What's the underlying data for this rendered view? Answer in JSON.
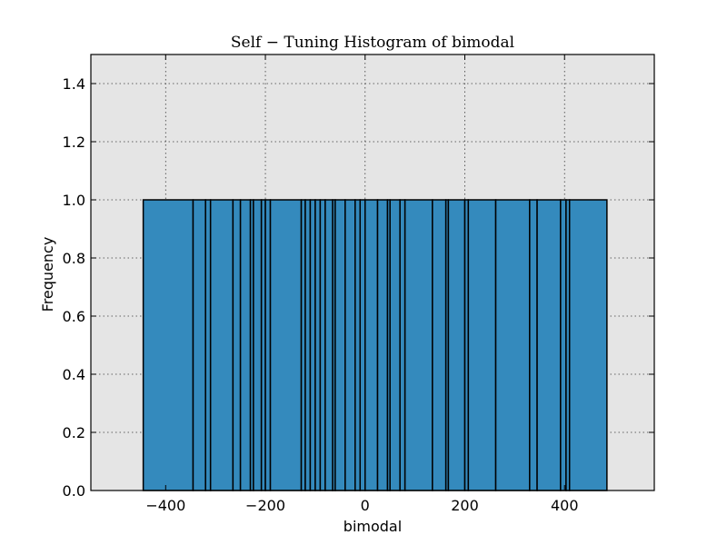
{
  "chart_data": {
    "type": "bar",
    "title": "Self − Tuning Histogram of bimodal",
    "xlabel": "bimodal",
    "ylabel": "Frequency",
    "xlim": [
      -550,
      580
    ],
    "ylim": [
      0,
      1.5
    ],
    "grid": true,
    "background": "#e5e5e5",
    "bar_color": "#348abd",
    "edge_color": "#000000",
    "x_ticks": [
      -400,
      -200,
      0,
      200,
      400
    ],
    "x_tick_labels": [
      "−400",
      "−200",
      "0",
      "200",
      "400"
    ],
    "y_ticks": [
      0.0,
      0.2,
      0.4,
      0.6,
      0.8,
      1.0,
      1.2,
      1.4
    ],
    "y_tick_labels": [
      "0.0",
      "0.2",
      "0.4",
      "0.6",
      "0.8",
      "1.0",
      "1.2",
      "1.4"
    ],
    "bin_edges": [
      -445,
      -345,
      -320,
      -310,
      -265,
      -250,
      -230,
      -224,
      -208,
      -200,
      -190,
      -128,
      -120,
      -110,
      -100,
      -90,
      -80,
      -65,
      -60,
      -40,
      -20,
      -10,
      0,
      25,
      45,
      50,
      70,
      80,
      135,
      162,
      167,
      200,
      207,
      262,
      330,
      345,
      392,
      403,
      410,
      485
    ],
    "counts": [
      1,
      1,
      1,
      1,
      1,
      1,
      1,
      1,
      1,
      1,
      1,
      1,
      1,
      1,
      1,
      1,
      1,
      1,
      1,
      1,
      1,
      1,
      1,
      1,
      1,
      1,
      1,
      1,
      1,
      1,
      1,
      1,
      1,
      1,
      1,
      1,
      1,
      1,
      1
    ]
  }
}
